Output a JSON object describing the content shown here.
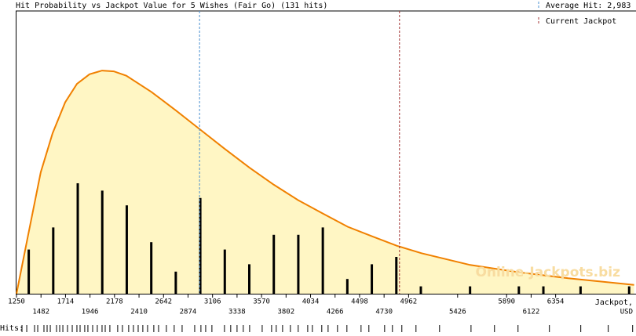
{
  "chart_data": {
    "type": "bar",
    "title": "Hit Probability vs Jackpot Value for 5 Wishes (Fair Go) (131 hits)",
    "x_label_lines": [
      "Jackpot,",
      "USD"
    ],
    "watermark": "Online-Jackpots.biz",
    "xlim": [
      1250,
      7100
    ],
    "ylim": [
      0,
      38.4
    ],
    "xticks": [
      1250,
      1482,
      1714,
      1946,
      2178,
      2410,
      2642,
      2874,
      3106,
      3338,
      3570,
      3802,
      4034,
      4266,
      4498,
      4730,
      4962,
      5426,
      5890,
      6122,
      6354
    ],
    "x": [
      1366,
      1598,
      1830,
      2062,
      2294,
      2526,
      2758,
      2990,
      3222,
      3454,
      3686,
      3918,
      4150,
      4382,
      4614,
      4846,
      5078,
      5544,
      6006,
      6238,
      6590,
      7050
    ],
    "values": [
      6,
      9,
      15,
      14,
      12,
      7,
      3,
      13,
      6,
      4,
      8,
      8,
      9,
      2,
      4,
      5,
      1,
      1,
      1,
      1,
      1,
      1
    ],
    "color": "#000000",
    "curve": {
      "color": "#f08000",
      "fill": "#fff6c4",
      "x": [
        1250,
        1361,
        1480,
        1592,
        1711,
        1822,
        1941,
        2060,
        2171,
        2290,
        2528,
        2758,
        2989,
        3219,
        3457,
        3687,
        3917,
        4148,
        4385,
        4616,
        4854,
        5084,
        5545,
        6013,
        6473,
        7097
      ],
      "y": [
        0,
        8,
        16.5,
        21.8,
        26,
        28.5,
        29.8,
        30.3,
        30.2,
        29.6,
        27.4,
        24.9,
        22.3,
        19.7,
        17.1,
        14.8,
        12.7,
        10.9,
        9.1,
        7.8,
        6.5,
        5.5,
        3.9,
        2.9,
        2.1,
        1.2
      ]
    },
    "reference_lines": [
      {
        "name": "Average Hit: 2,983",
        "value": 2983,
        "color": "#4a90d0"
      },
      {
        "name": "Current Jackpot",
        "value": 4876,
        "color": "#a03030"
      }
    ],
    "hits_label": "Hits:",
    "hit_marks": [
      1302,
      1347,
      1421,
      1451,
      1510,
      1540,
      1570,
      1629,
      1659,
      1689,
      1733,
      1778,
      1822,
      1852,
      1896,
      1926,
      1971,
      2015,
      2060,
      2090,
      2134,
      2208,
      2253,
      2312,
      2357,
      2402,
      2446,
      2491,
      2550,
      2595,
      2669,
      2743,
      2818,
      2937,
      2996,
      3041,
      3100,
      3219,
      3278,
      3338,
      3397,
      3457,
      3576,
      3665,
      3709,
      3769,
      3843,
      3917,
      4007,
      4051,
      4140,
      4200,
      4289,
      4378,
      4512,
      4586,
      4735,
      4809,
      4898,
      5032,
      5255,
      5553,
      5775,
      5998,
      6295,
      6592,
      6852,
      7083
    ]
  }
}
